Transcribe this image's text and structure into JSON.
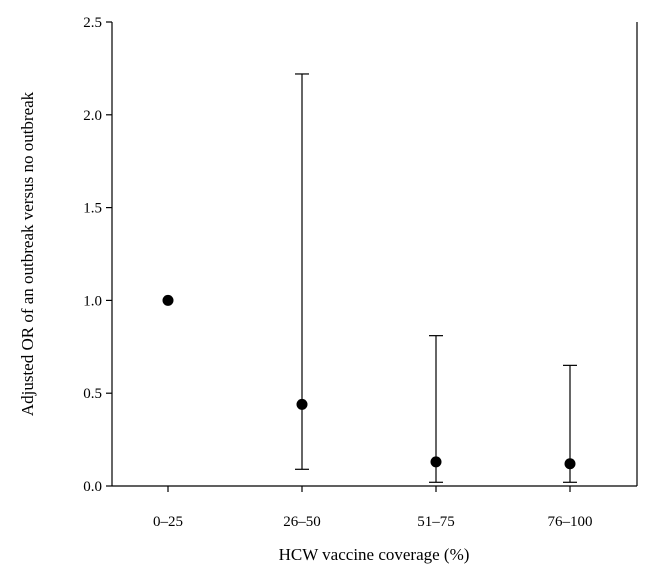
{
  "chart_data": {
    "type": "scatter",
    "xlabel": "HCW vaccine coverage (%)",
    "ylabel": "Adjusted OR of an outbreak versus no outbreak",
    "categories": [
      "0–25",
      "26–50",
      "51–75",
      "76–100"
    ],
    "values": [
      1.0,
      0.44,
      0.13,
      0.12
    ],
    "ci_lower": [
      null,
      0.09,
      0.02,
      0.02
    ],
    "ci_upper": [
      null,
      2.22,
      0.81,
      0.65
    ],
    "ylim": [
      0,
      2.5
    ],
    "yticks": [
      "0.0",
      "0.5",
      "1.0",
      "1.5",
      "2.0",
      "2.5"
    ],
    "grid": false,
    "marker_color": "#000000"
  }
}
